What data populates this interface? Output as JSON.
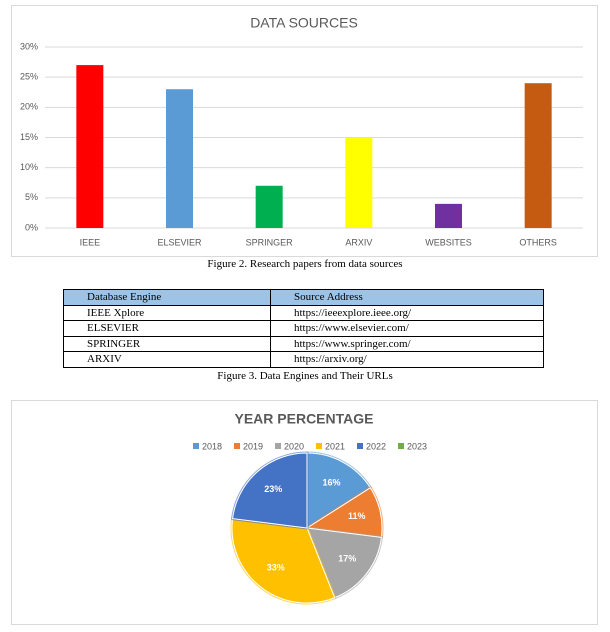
{
  "chart_data": [
    {
      "type": "bar",
      "title": "DATA SOURCES",
      "categories": [
        "IEEE",
        "ELSEVIER",
        "SPRINGER",
        "ARXIV",
        "WEBSITES",
        "OTHERS"
      ],
      "values": [
        27,
        23,
        7,
        15,
        4,
        24
      ],
      "colors": [
        "#ff0000",
        "#5b9bd5",
        "#00b050",
        "#ffff00",
        "#7030a0",
        "#c55a11"
      ],
      "ylim": [
        0,
        30
      ],
      "yticks": [
        {
          "value": 0,
          "label": "0%"
        },
        {
          "value": 5,
          "label": "5%"
        },
        {
          "value": 10,
          "label": "10%"
        },
        {
          "value": 15,
          "label": "15%"
        },
        {
          "value": 20,
          "label": "20%"
        },
        {
          "value": 25,
          "label": "25%"
        },
        {
          "value": 30,
          "label": "30%"
        }
      ],
      "grid": true
    },
    {
      "type": "pie",
      "title": "YEAR PERCENTAGE",
      "categories": [
        "2018",
        "2019",
        "2020",
        "2021",
        "2022",
        "2023"
      ],
      "values": [
        16,
        11,
        17,
        33,
        23,
        0
      ],
      "value_labels": [
        "16%",
        "11%",
        "17%",
        "33%",
        "23%",
        null
      ],
      "colors": [
        "#5b9bd5",
        "#ed7d31",
        "#a5a5a5",
        "#ffc000",
        "#4472c4",
        "#70ad47"
      ],
      "legend": "top"
    }
  ],
  "captions": [
    "Figure 2. Research papers from data sources",
    "Figure 3. Data Engines and Their URLs"
  ],
  "table": {
    "header": [
      "Database Engine",
      "Source Address"
    ],
    "rows": [
      [
        "IEEE Xplore",
        "https://ieeexplore.ieee.org/"
      ],
      [
        "ELSEVIER",
        "https://www.elsevier.com/"
      ],
      [
        "SPRINGER",
        "https://www.springer.com/"
      ],
      [
        "ARXIV",
        "https://arxiv.org/"
      ]
    ]
  }
}
